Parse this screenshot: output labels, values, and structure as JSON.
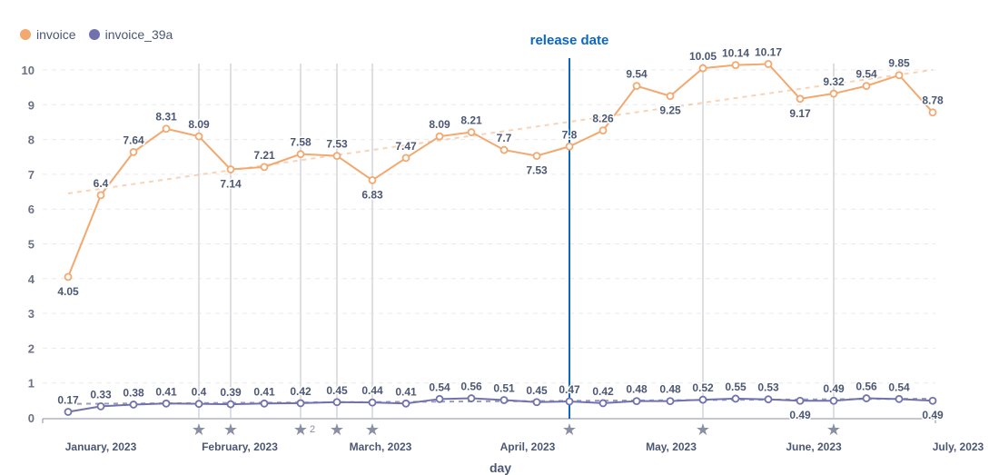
{
  "chart_data": {
    "type": "line",
    "xlabel": "day",
    "ylabel": "",
    "ylim": [
      0,
      10
    ],
    "yticks": [
      "0",
      "1",
      "2",
      "3",
      "4",
      "5",
      "6",
      "7",
      "8",
      "9",
      "10"
    ],
    "xticks": [
      "January, 2023",
      "February, 2023",
      "March, 2023",
      "April, 2023",
      "May, 2023",
      "June, 2023",
      "July, 2023"
    ],
    "legend_position": "top-left",
    "annotation": "release date",
    "series": [
      {
        "name": "invoice",
        "color": "#f2a86f",
        "values": [
          4.05,
          6.4,
          7.64,
          8.31,
          8.09,
          7.14,
          7.21,
          7.58,
          7.53,
          6.83,
          7.47,
          8.09,
          8.21,
          7.7,
          7.53,
          7.8,
          8.26,
          9.54,
          9.25,
          10.05,
          10.14,
          10.17,
          9.17,
          9.32,
          9.54,
          9.85,
          8.78
        ],
        "trend": [
          6.45,
          10.0
        ]
      },
      {
        "name": "invoice_39a",
        "color": "#7172ad",
        "values": [
          0.17,
          0.33,
          0.38,
          0.41,
          0.4,
          0.39,
          0.41,
          0.42,
          0.45,
          0.44,
          0.41,
          0.54,
          0.56,
          0.51,
          0.45,
          0.47,
          0.42,
          0.48,
          0.48,
          0.52,
          0.55,
          0.53,
          0.49,
          0.49,
          0.56,
          0.54,
          0.49
        ],
        "trend": [
          0.4,
          0.55
        ]
      }
    ],
    "event_markers": [
      4,
      5,
      7,
      8,
      9,
      15,
      19,
      23
    ],
    "event_marker_counts": {
      "7": "2"
    },
    "release_index": 15
  }
}
